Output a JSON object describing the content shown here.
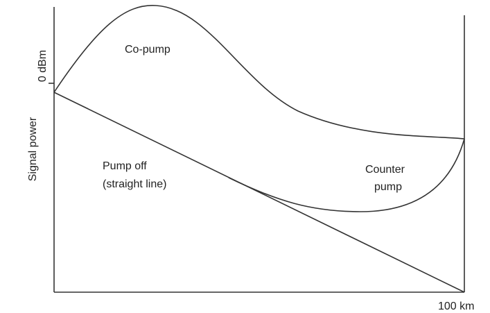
{
  "axes": {
    "y_label": "Signal power",
    "y_tick": "0 dBm",
    "x_end": "100 km"
  },
  "curves": {
    "co_pump": "Co-pump",
    "pump_off": [
      "Pump off",
      "(straight line)"
    ],
    "counter_pump": [
      "Counter",
      "pump"
    ]
  }
}
